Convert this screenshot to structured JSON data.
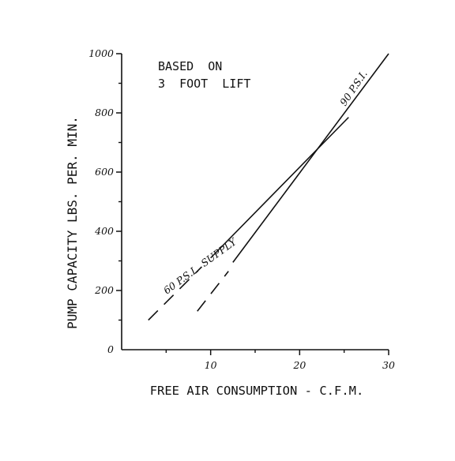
{
  "chart_data": {
    "type": "line",
    "xlabel": "FREE AIR CONSUMPTION - C.F.M.",
    "ylabel": "PUMP CAPACITY    LBS. PER. MIN.",
    "xlim": [
      0,
      30
    ],
    "ylim": [
      0,
      1000
    ],
    "x_ticks": [
      {
        "value": 10,
        "label": "10"
      },
      {
        "value": 20,
        "label": "20"
      },
      {
        "value": 30,
        "label": "30"
      }
    ],
    "y_ticks": [
      {
        "value": 0,
        "label": "0"
      },
      {
        "value": 200,
        "label": "200"
      },
      {
        "value": 400,
        "label": "400"
      },
      {
        "value": 600,
        "label": "600"
      },
      {
        "value": 800,
        "label": "800"
      },
      {
        "value": 1000,
        "label": "1000"
      }
    ],
    "grid": false,
    "annotation": [
      "BASED  ON",
      "3  FOOT  LIFT"
    ],
    "series": [
      {
        "name": "60 P.S.I. SUPPLY",
        "label_text": "60 P.S.I.  SUPPLY",
        "color": "#111111",
        "dashed_segment": {
          "x": [
            3,
            9
          ],
          "y": [
            100,
            280
          ]
        },
        "solid_segment": {
          "x": [
            10,
            25.5
          ],
          "y": [
            310,
            785
          ]
        }
      },
      {
        "name": "90 P.S.I.",
        "label_text": "90 P.S.I.",
        "color": "#111111",
        "dashed_segment": {
          "x": [
            8.5,
            12
          ],
          "y": [
            130,
            265
          ]
        },
        "solid_segment": {
          "x": [
            12.5,
            30
          ],
          "y": [
            295,
            1000
          ]
        }
      }
    ]
  }
}
